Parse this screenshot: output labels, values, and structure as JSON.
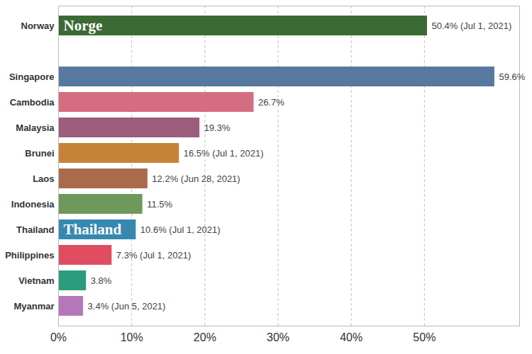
{
  "chart_data": {
    "type": "bar",
    "orientation": "horizontal",
    "categories": [
      "Norway",
      null,
      "Singapore",
      "Cambodia",
      "Malaysia",
      "Brunei",
      "Laos",
      "Indonesia",
      "Thailand",
      "Philippines",
      "Vietnam",
      "Myanmar"
    ],
    "values": [
      50.4,
      null,
      59.6,
      26.7,
      19.3,
      16.5,
      12.2,
      11.5,
      10.6,
      7.3,
      3.8,
      3.4
    ],
    "value_labels": [
      "50.4% (Jul 1, 2021)",
      null,
      "59.6%",
      "26.7%",
      "19.3%",
      "16.5% (Jul 1, 2021)",
      "12.2% (Jun 28, 2021)",
      "11.5%",
      "10.6% (Jul 1, 2021)",
      "7.3% (Jul 1, 2021)",
      "3.8%",
      "3.4% (Jun 5, 2021)"
    ],
    "colors": [
      "#3b6a34",
      null,
      "#58799f",
      "#d36d7f",
      "#9c5c7c",
      "#c7823a",
      "#a96b4b",
      "#6f995b",
      "#3589b1",
      "#e04d60",
      "#2b9c7c",
      "#b676ba"
    ],
    "annotations": [
      {
        "text": "Norge",
        "category": "Norway"
      },
      {
        "text": "Thailand",
        "category": "Thailand"
      }
    ],
    "xlim": [
      0,
      63
    ],
    "xticks": [
      {
        "value": 0,
        "label": "0%"
      },
      {
        "value": 10,
        "label": "10%"
      },
      {
        "value": 20,
        "label": "20%"
      },
      {
        "value": 30,
        "label": "30%"
      },
      {
        "value": 40,
        "label": "40%"
      },
      {
        "value": 50,
        "label": "50%"
      }
    ],
    "grid": true,
    "data_labels": true
  }
}
